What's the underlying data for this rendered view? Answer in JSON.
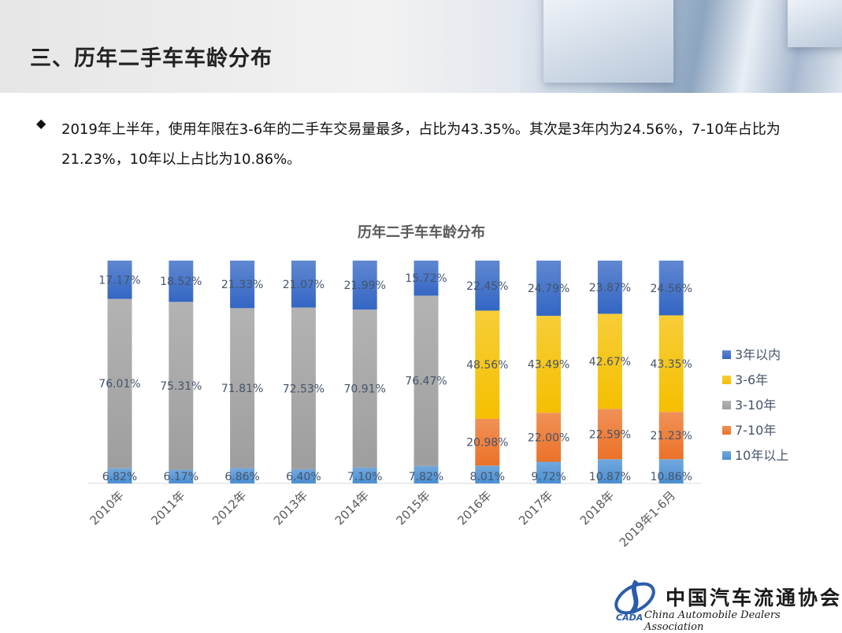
{
  "header": {
    "title": "三、历年二手车车龄分布"
  },
  "summary": {
    "bullet_icon": "diamond-bullet",
    "text": "2019年上半年，使用年限在3-6年的二手车交易量最多，占比为43.35%。其次是3年内为24.56%，7-10年占比为21.23%，10年以上占比为10.86%。"
  },
  "chart_data": {
    "type": "bar",
    "stacked": true,
    "title": "历年二手车车龄分布",
    "categories": [
      "2010年",
      "2011年",
      "2012年",
      "2013年",
      "2014年",
      "2015年",
      "2016年",
      "2017年",
      "2018年",
      "2019年1-6月"
    ],
    "ylim": [
      0,
      100
    ],
    "unit": "%",
    "grid": false,
    "legend_position": "right",
    "series": [
      {
        "name": "10年以上",
        "color": "#4a8fd3",
        "values": [
          6.82,
          6.17,
          6.86,
          6.4,
          7.1,
          7.82,
          8.01,
          9.72,
          10.87,
          10.86
        ]
      },
      {
        "name": "7-10年",
        "color": "#ec7228",
        "values": [
          null,
          null,
          null,
          null,
          null,
          null,
          20.98,
          22.0,
          22.59,
          21.23
        ]
      },
      {
        "name": "3-10年",
        "color": "#9e9e9e",
        "values": [
          76.01,
          75.31,
          71.81,
          72.53,
          70.91,
          76.47,
          null,
          null,
          null,
          null
        ]
      },
      {
        "name": "3-6年",
        "color": "#f5bf00",
        "values": [
          null,
          null,
          null,
          null,
          null,
          null,
          48.56,
          43.49,
          42.67,
          43.35
        ]
      },
      {
        "name": "3年以内",
        "color": "#3366c4",
        "values": [
          17.17,
          18.52,
          21.33,
          21.07,
          21.99,
          15.72,
          22.45,
          24.79,
          23.87,
          24.56
        ]
      }
    ],
    "legend_order": [
      "3年以内",
      "3-6年",
      "3-10年",
      "7-10年",
      "10年以上"
    ]
  },
  "logo": {
    "cn": "中国汽车流通协会",
    "en": "China Automobile Dealers Association",
    "mark": "CADA"
  }
}
